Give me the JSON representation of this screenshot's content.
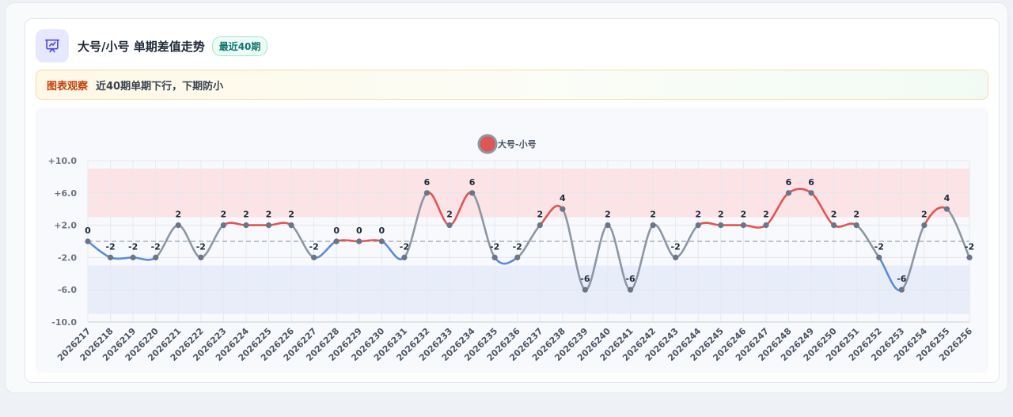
{
  "header": {
    "icon": "presentation-chart-icon",
    "title": "大号/小号 单期差值走势",
    "badge": "最近40期"
  },
  "insight": {
    "label": "图表观察",
    "text": "近40期单期下行，下期防小"
  },
  "colors": {
    "accent": "#6366f1",
    "up": "#e05555",
    "down": "#5b8dd9",
    "neutral": "#8c96a5",
    "high_band": "#fbe3e6",
    "low_band": "#e8edfa"
  },
  "chart_data": {
    "type": "line",
    "legend": {
      "name": "大号-小号",
      "position": "top-center"
    },
    "ylim": [
      -10,
      10
    ],
    "yticks": [
      "+10.0",
      "+6.0",
      "+2.0",
      "-2.0",
      "-6.0",
      "-10.0"
    ],
    "ytick_values": [
      10,
      6,
      2,
      -2,
      -6,
      -10
    ],
    "bands": [
      {
        "from": 3,
        "to": 9,
        "color": "#fbe3e6"
      },
      {
        "from": -9,
        "to": -3,
        "color": "#e8edfa"
      }
    ],
    "reference_line": 0,
    "grid": true,
    "x": [
      "2026217",
      "2026218",
      "2026219",
      "2026220",
      "2026221",
      "2026222",
      "2026223",
      "2026224",
      "2026225",
      "2026226",
      "2026227",
      "2026228",
      "2026229",
      "2026230",
      "2026231",
      "2026232",
      "2026233",
      "2026234",
      "2026235",
      "2026236",
      "2026237",
      "2026238",
      "2026239",
      "2026240",
      "2026241",
      "2026242",
      "2026243",
      "2026244",
      "2026245",
      "2026246",
      "2026247",
      "2026248",
      "2026249",
      "2026250",
      "2026251",
      "2026252",
      "2026253",
      "2026254",
      "2026255",
      "2026256"
    ],
    "series": [
      {
        "name": "大号-小号",
        "values": [
          0,
          -2,
          -2,
          -2,
          2,
          -2,
          2,
          2,
          2,
          2,
          -2,
          0,
          0,
          0,
          -2,
          6,
          2,
          6,
          -2,
          -2,
          2,
          4,
          -6,
          2,
          -6,
          2,
          -2,
          2,
          2,
          2,
          2,
          6,
          6,
          2,
          2,
          -2,
          -6,
          2,
          4,
          -2
        ]
      }
    ]
  }
}
